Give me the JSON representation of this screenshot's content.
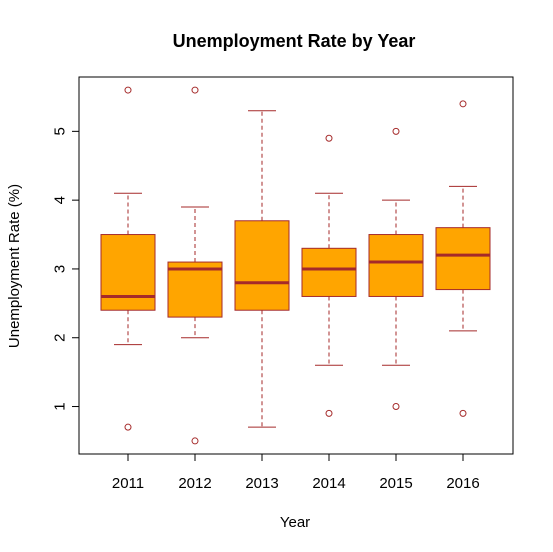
{
  "chart_data": {
    "type": "box",
    "title": "Unemployment Rate by Year",
    "xlabel": "Year",
    "ylabel": "Unemployment Rate (%)",
    "categories": [
      "2011",
      "2012",
      "2013",
      "2014",
      "2015",
      "2016"
    ],
    "y_ticks": [
      "1",
      "2",
      "3",
      "4",
      "5"
    ],
    "ylim": [
      0.31,
      5.79
    ],
    "grid": false,
    "boxes": [
      {
        "category": "2011",
        "whisker_low": 1.9,
        "q1": 2.4,
        "median": 2.6,
        "q3": 3.5,
        "whisker_high": 4.1,
        "outliers": [
          0.7,
          5.6
        ]
      },
      {
        "category": "2012",
        "whisker_low": 2.0,
        "q1": 2.3,
        "median": 3.0,
        "q3": 3.1,
        "whisker_high": 3.9,
        "outliers": [
          0.5,
          5.6
        ]
      },
      {
        "category": "2013",
        "whisker_low": 0.7,
        "q1": 2.4,
        "median": 2.8,
        "q3": 3.7,
        "whisker_high": 5.3,
        "outliers": []
      },
      {
        "category": "2014",
        "whisker_low": 1.6,
        "q1": 2.6,
        "median": 3.0,
        "q3": 3.3,
        "whisker_high": 4.1,
        "outliers": [
          0.9,
          4.9
        ]
      },
      {
        "category": "2015",
        "whisker_low": 1.6,
        "q1": 2.6,
        "median": 3.1,
        "q3": 3.5,
        "whisker_high": 4.0,
        "outliers": [
          1.0,
          5.0
        ]
      },
      {
        "category": "2016",
        "whisker_low": 2.1,
        "q1": 2.7,
        "median": 3.2,
        "q3": 3.6,
        "whisker_high": 4.2,
        "outliers": [
          0.9,
          5.4
        ]
      }
    ],
    "colors": {
      "box_fill": "#FFA500",
      "box_border": "#A52A2A",
      "median": "#A52A2A",
      "whisker": "#A52A2A",
      "outlier": "#A52A2A"
    }
  }
}
